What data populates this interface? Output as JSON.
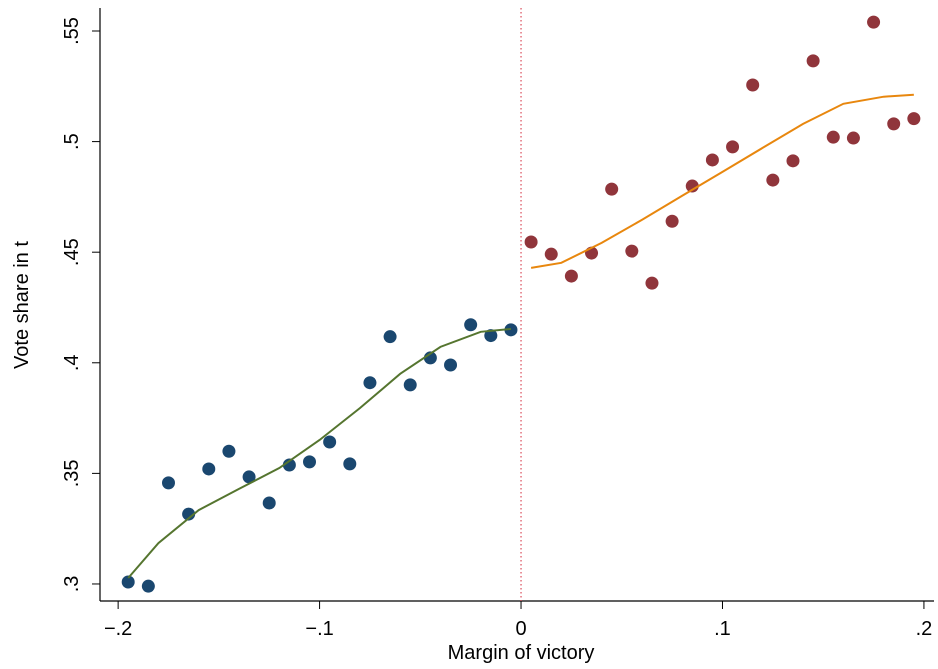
{
  "chart_data": {
    "type": "scatter",
    "xlabel": "Margin of victory",
    "ylabel": "Vote share in t",
    "xlim": [
      -0.209,
      0.205
    ],
    "ylim": [
      0.2923,
      0.5604
    ],
    "xticks": [
      {
        "value": -0.2,
        "label": "−.2"
      },
      {
        "value": -0.1,
        "label": "−.1"
      },
      0,
      {
        "value": 0.1,
        "label": ".1"
      },
      {
        "value": 0.2,
        "label": ".2"
      }
    ],
    "yticks": [
      {
        "value": 0.3,
        "label": ".3"
      },
      {
        "value": 0.35,
        "label": ".35"
      },
      {
        "value": 0.4,
        "label": ".4"
      },
      {
        "value": 0.45,
        "label": ".45"
      },
      {
        "value": 0.5,
        "label": ".5"
      },
      {
        "value": 0.55,
        "label": ".55"
      }
    ],
    "xline": {
      "value": 0,
      "color": "#d94b5a"
    },
    "series": [
      {
        "mode": "markers",
        "color": "#1a476f",
        "x": [
          -0.195,
          -0.185,
          -0.175,
          -0.165,
          -0.155,
          -0.145,
          -0.135,
          -0.125,
          -0.115,
          -0.105,
          -0.095,
          -0.085,
          -0.075,
          -0.065,
          -0.055,
          -0.045,
          -0.035,
          -0.025,
          -0.015,
          -0.005
        ],
        "values": [
          0.3009,
          0.299,
          0.3457,
          0.3316,
          0.352,
          0.36,
          0.3484,
          0.3366,
          0.3538,
          0.3552,
          0.3642,
          0.3543,
          0.391,
          0.4118,
          0.39,
          0.4022,
          0.399,
          0.4172,
          0.4123,
          0.4149
        ]
      },
      {
        "mode": "markers",
        "color": "#90353b",
        "x": [
          0.005,
          0.015,
          0.025,
          0.035,
          0.045,
          0.055,
          0.065,
          0.075,
          0.085,
          0.095,
          0.105,
          0.115,
          0.125,
          0.135,
          0.145,
          0.155,
          0.165,
          0.175,
          0.185,
          0.195
        ],
        "values": [
          0.4546,
          0.4491,
          0.4392,
          0.4496,
          0.4785,
          0.4505,
          0.436,
          0.464,
          0.4799,
          0.4917,
          0.4976,
          0.5256,
          0.4826,
          0.4913,
          0.5365,
          0.502,
          0.5016,
          0.554,
          0.508,
          0.5104
        ]
      },
      {
        "mode": "line",
        "color": "#55752f",
        "x": [
          -0.195,
          -0.18,
          -0.16,
          -0.14,
          -0.12,
          -0.1,
          -0.08,
          -0.06,
          -0.04,
          -0.02,
          -0.005
        ],
        "values": [
          0.3027,
          0.3185,
          0.3334,
          0.343,
          0.3524,
          0.3651,
          0.3795,
          0.395,
          0.4072,
          0.414,
          0.4153
        ]
      },
      {
        "mode": "line",
        "color": "#e8870e",
        "x": [
          0.005,
          0.02,
          0.04,
          0.06,
          0.08,
          0.1,
          0.12,
          0.14,
          0.16,
          0.18,
          0.195
        ],
        "values": [
          0.4429,
          0.4452,
          0.4542,
          0.4646,
          0.4755,
          0.4863,
          0.4972,
          0.508,
          0.5171,
          0.5203,
          0.5212
        ]
      }
    ]
  }
}
